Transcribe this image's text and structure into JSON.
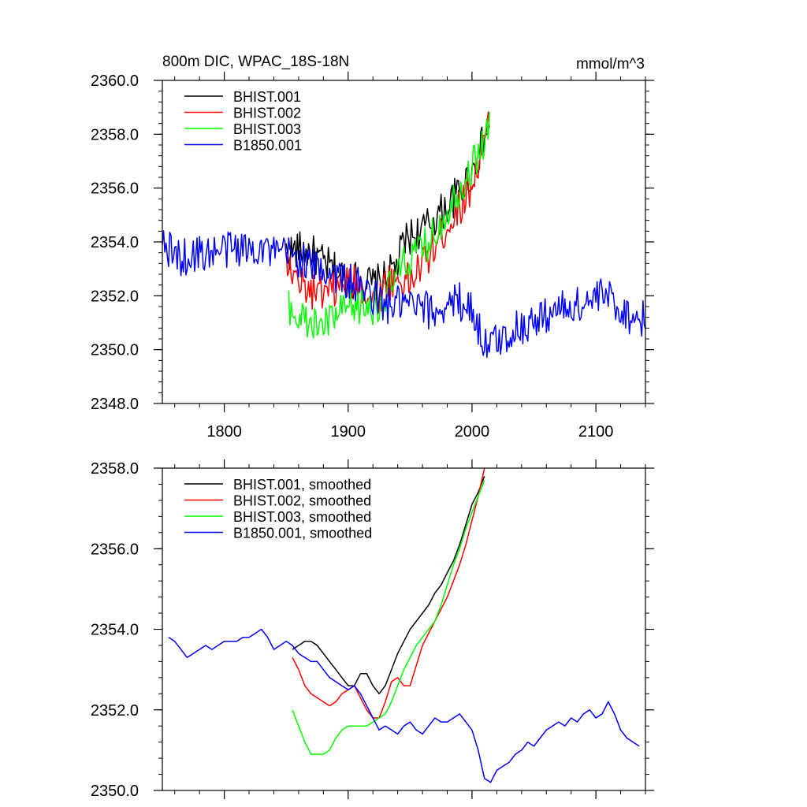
{
  "chart_data": [
    {
      "type": "line",
      "title": "800m DIC, WPAC_18S-18N",
      "units": "mmol/m^3",
      "xlim": [
        1750,
        2140
      ],
      "ylim": [
        2348.0,
        2360.0
      ],
      "xticks": [
        1800,
        1900,
        2000,
        2100
      ],
      "xtick_labels": [
        "1800",
        "1900",
        "2000",
        "2100"
      ],
      "yticks": [
        2348.0,
        2350.0,
        2352.0,
        2354.0,
        2356.0,
        2358.0,
        2360.0
      ],
      "ytick_labels": [
        "2348.0",
        "2350.0",
        "2352.0",
        "2354.0",
        "2356.0",
        "2358.0",
        "2360.0"
      ],
      "legend_position": "top-left",
      "series": [
        {
          "name": "BHIST.001",
          "color": "#000000",
          "x": [
            1850,
            1860,
            1870,
            1880,
            1890,
            1900,
            1910,
            1920,
            1930,
            1940,
            1945,
            1950,
            1960,
            1970,
            1980,
            1990,
            2000,
            2005,
            2010,
            2014
          ],
          "y": [
            2353.6,
            2353.7,
            2353.6,
            2353.2,
            2352.9,
            2352.6,
            2352.6,
            2352.4,
            2352.6,
            2353.2,
            2354.0,
            2354.2,
            2354.4,
            2354.9,
            2355.3,
            2355.9,
            2356.6,
            2357.2,
            2357.8,
            2358.3
          ]
        },
        {
          "name": "BHIST.002",
          "color": "#ff0000",
          "x": [
            1850,
            1860,
            1870,
            1880,
            1890,
            1900,
            1910,
            1920,
            1925,
            1930,
            1940,
            1950,
            1960,
            1970,
            1980,
            1990,
            2000,
            2005,
            2010,
            2014
          ],
          "y": [
            2353.2,
            2352.4,
            2352.2,
            2352.0,
            2352.2,
            2352.5,
            2352.4,
            2351.8,
            2351.9,
            2352.5,
            2352.6,
            2352.5,
            2353.2,
            2353.8,
            2354.6,
            2355.3,
            2356.2,
            2356.9,
            2357.6,
            2358.4
          ]
        },
        {
          "name": "BHIST.003",
          "color": "#00ff00",
          "x": [
            1852,
            1860,
            1870,
            1880,
            1890,
            1900,
            1910,
            1920,
            1930,
            1940,
            1950,
            1960,
            1970,
            1980,
            1990,
            2000,
            2005,
            2010,
            2014
          ],
          "y": [
            2351.7,
            2351.2,
            2350.9,
            2350.9,
            2351.2,
            2351.5,
            2351.6,
            2351.6,
            2351.9,
            2352.8,
            2353.4,
            2353.7,
            2354.3,
            2355.2,
            2356.0,
            2356.8,
            2357.3,
            2357.8,
            2358.3
          ]
        },
        {
          "name": "B1850.001",
          "color": "#0000ff",
          "x": [
            1750,
            1760,
            1770,
            1780,
            1790,
            1800,
            1810,
            1820,
            1830,
            1840,
            1850,
            1860,
            1870,
            1880,
            1890,
            1900,
            1910,
            1920,
            1930,
            1940,
            1950,
            1960,
            1970,
            1980,
            1990,
            2000,
            2010,
            2020,
            2030,
            2040,
            2050,
            2060,
            2070,
            2080,
            2090,
            2100,
            2110,
            2120,
            2130,
            2140
          ],
          "y": [
            2353.9,
            2353.5,
            2353.4,
            2353.6,
            2353.6,
            2353.7,
            2353.8,
            2353.7,
            2353.9,
            2353.5,
            2353.6,
            2353.4,
            2353.1,
            2353.0,
            2352.8,
            2352.5,
            2352.3,
            2352.0,
            2351.6,
            2351.7,
            2351.6,
            2351.5,
            2351.4,
            2351.7,
            2351.8,
            2351.5,
            2350.2,
            2350.3,
            2350.6,
            2350.9,
            2351.0,
            2351.3,
            2351.5,
            2351.6,
            2351.7,
            2351.9,
            2352.0,
            2351.5,
            2351.2,
            2351.1
          ]
        }
      ]
    },
    {
      "type": "line",
      "xlim": [
        1750,
        2140
      ],
      "ylim": [
        2350.0,
        2358.0
      ],
      "xticks": [
        1800,
        1900,
        2000,
        2100
      ],
      "yticks": [
        2350.0,
        2352.0,
        2354.0,
        2356.0,
        2358.0
      ],
      "ytick_labels": [
        "2350.0",
        "2352.0",
        "2354.0",
        "2356.0",
        "2358.0"
      ],
      "legend_position": "top-left",
      "series": [
        {
          "name": "BHIST.001, smoothed",
          "color": "#000000",
          "x": [
            1855,
            1860,
            1865,
            1870,
            1875,
            1880,
            1885,
            1890,
            1895,
            1900,
            1905,
            1910,
            1915,
            1920,
            1925,
            1930,
            1935,
            1940,
            1945,
            1950,
            1955,
            1960,
            1965,
            1970,
            1975,
            1980,
            1985,
            1990,
            1995,
            2000,
            2005,
            2010
          ],
          "y": [
            2353.5,
            2353.6,
            2353.7,
            2353.7,
            2353.6,
            2353.4,
            2353.2,
            2353.0,
            2352.8,
            2352.6,
            2352.6,
            2352.9,
            2352.9,
            2352.6,
            2352.4,
            2352.6,
            2353.0,
            2353.4,
            2353.7,
            2354.0,
            2354.2,
            2354.4,
            2354.6,
            2354.9,
            2355.1,
            2355.4,
            2355.7,
            2356.1,
            2356.6,
            2357.1,
            2357.4,
            2357.8
          ]
        },
        {
          "name": "BHIST.002, smoothed",
          "color": "#ff0000",
          "x": [
            1855,
            1860,
            1865,
            1870,
            1875,
            1880,
            1885,
            1890,
            1895,
            1900,
            1905,
            1910,
            1915,
            1920,
            1925,
            1930,
            1935,
            1940,
            1945,
            1950,
            1955,
            1960,
            1965,
            1970,
            1975,
            1980,
            1985,
            1990,
            1995,
            2000,
            2005,
            2010
          ],
          "y": [
            2353.3,
            2353.0,
            2352.6,
            2352.4,
            2352.3,
            2352.2,
            2352.1,
            2352.2,
            2352.4,
            2352.5,
            2352.6,
            2352.3,
            2352.0,
            2351.8,
            2351.8,
            2352.2,
            2352.7,
            2352.8,
            2352.6,
            2352.6,
            2353.1,
            2353.6,
            2353.9,
            2354.2,
            2354.5,
            2354.8,
            2355.2,
            2355.6,
            2356.1,
            2356.7,
            2357.3,
            2358.0
          ]
        },
        {
          "name": "BHIST.003, smoothed",
          "color": "#00ff00",
          "x": [
            1855,
            1860,
            1865,
            1870,
            1875,
            1880,
            1885,
            1890,
            1895,
            1900,
            1905,
            1910,
            1915,
            1920,
            1925,
            1930,
            1935,
            1940,
            1945,
            1950,
            1955,
            1960,
            1965,
            1970,
            1975,
            1980,
            1985,
            1990,
            1995,
            2000,
            2005,
            2010
          ],
          "y": [
            2352.0,
            2351.6,
            2351.2,
            2350.9,
            2350.9,
            2350.9,
            2351.0,
            2351.3,
            2351.5,
            2351.6,
            2351.6,
            2351.6,
            2351.6,
            2351.7,
            2351.8,
            2351.9,
            2352.2,
            2352.6,
            2353.0,
            2353.3,
            2353.6,
            2353.8,
            2354.0,
            2354.2,
            2354.6,
            2355.1,
            2355.6,
            2356.0,
            2356.5,
            2356.9,
            2357.3,
            2357.7
          ]
        },
        {
          "name": "B1850.001, smoothed",
          "color": "#0000ff",
          "x": [
            1755,
            1760,
            1765,
            1770,
            1775,
            1780,
            1785,
            1790,
            1795,
            1800,
            1805,
            1810,
            1815,
            1820,
            1825,
            1830,
            1835,
            1840,
            1845,
            1850,
            1855,
            1860,
            1865,
            1870,
            1875,
            1880,
            1885,
            1890,
            1895,
            1900,
            1905,
            1910,
            1915,
            1920,
            1925,
            1930,
            1935,
            1940,
            1945,
            1950,
            1955,
            1960,
            1965,
            1970,
            1975,
            1980,
            1985,
            1990,
            1995,
            2000,
            2005,
            2010,
            2015,
            2020,
            2025,
            2030,
            2035,
            2040,
            2045,
            2050,
            2055,
            2060,
            2065,
            2070,
            2075,
            2080,
            2085,
            2090,
            2095,
            2100,
            2105,
            2110,
            2115,
            2120,
            2125,
            2130,
            2135
          ],
          "y": [
            2353.8,
            2353.7,
            2353.5,
            2353.3,
            2353.4,
            2353.5,
            2353.6,
            2353.5,
            2353.6,
            2353.7,
            2353.7,
            2353.7,
            2353.8,
            2353.8,
            2353.9,
            2354.0,
            2353.8,
            2353.5,
            2353.6,
            2353.7,
            2353.6,
            2353.4,
            2353.3,
            2353.2,
            2353.2,
            2353.0,
            2352.8,
            2352.7,
            2352.6,
            2352.5,
            2352.6,
            2352.4,
            2352.1,
            2351.8,
            2351.5,
            2351.6,
            2351.5,
            2351.4,
            2351.6,
            2351.7,
            2351.5,
            2351.4,
            2351.6,
            2351.8,
            2351.7,
            2351.7,
            2351.8,
            2351.9,
            2351.7,
            2351.5,
            2351.0,
            2350.3,
            2350.2,
            2350.5,
            2350.6,
            2350.7,
            2350.9,
            2351.0,
            2351.2,
            2351.1,
            2351.3,
            2351.5,
            2351.6,
            2351.7,
            2351.6,
            2351.8,
            2351.7,
            2351.9,
            2352.0,
            2351.8,
            2351.9,
            2352.2,
            2351.9,
            2351.5,
            2351.3,
            2351.2,
            2351.1
          ]
        }
      ]
    }
  ]
}
